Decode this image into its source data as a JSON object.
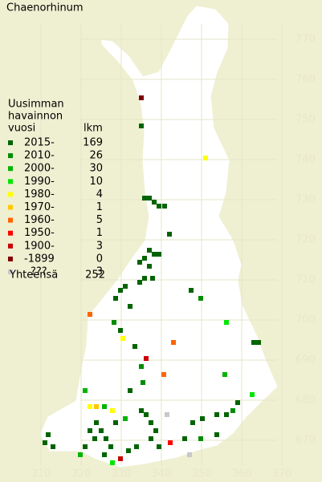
{
  "title": "Chaenorhinum",
  "legend": {
    "heading": [
      "Uusimman",
      "havainnon",
      "vuosi"
    ],
    "count_heading": "lkm",
    "rows": [
      {
        "label": "2015-",
        "count": 169,
        "color": "#006400"
      },
      {
        "label": "2010-",
        "count": 26,
        "color": "#008c00"
      },
      {
        "label": "2000-",
        "count": 30,
        "color": "#00b400"
      },
      {
        "label": "1990-",
        "count": 10,
        "color": "#00e600"
      },
      {
        "label": "1980-",
        "count": 4,
        "color": "#ffff00"
      },
      {
        "label": "1970-",
        "count": 1,
        "color": "#ffc800"
      },
      {
        "label": "1960-",
        "count": 5,
        "color": "#ff6400"
      },
      {
        "label": "1950-",
        "count": 1,
        "color": "#ff0000"
      },
      {
        "label": "1900-",
        "count": 3,
        "color": "#c80000"
      },
      {
        "label": "-1899",
        "count": 0,
        "color": "#800000"
      },
      {
        "label": "???",
        "count": 3,
        "color": "#c8c8c8"
      }
    ],
    "total_label": "Yhteensä",
    "total": 252
  },
  "northing_labels": [
    770,
    760,
    750,
    740,
    730,
    720,
    710,
    700,
    690,
    680,
    670
  ],
  "easting_labels": [
    310,
    320,
    330,
    340,
    350,
    360,
    370
  ]
}
